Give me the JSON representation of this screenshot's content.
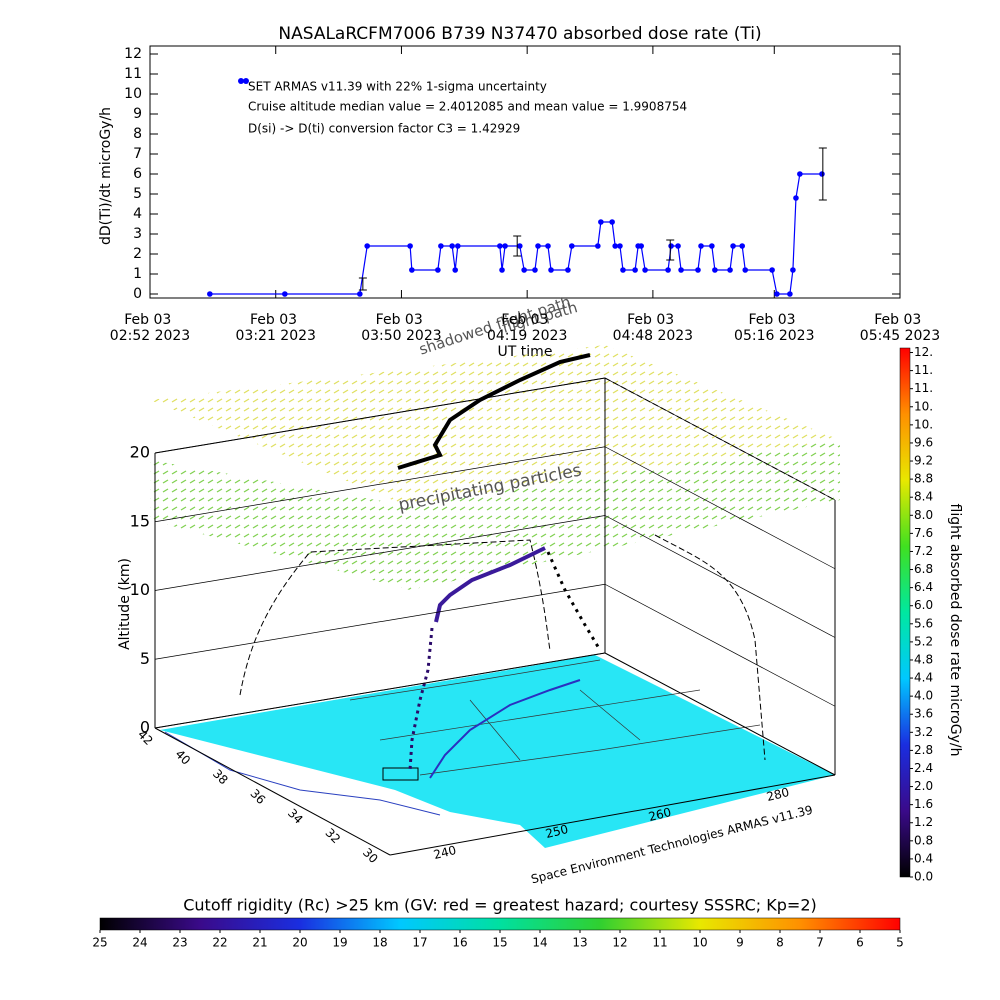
{
  "chart_data": [
    {
      "type": "line",
      "title": "NASALaRCFM7006   B739 N37470 absorbed dose rate (Ti)",
      "ylabel": "dD(Ti)/dt microGy/h",
      "xlabel": "UT time",
      "x": [
        185.8,
        203.1,
        220.4,
        222.1,
        232.0,
        232.4,
        238.4,
        239.1,
        241.7,
        242.4,
        243.0,
        252.7,
        253.2,
        253.9,
        257.3,
        258.3,
        260.8,
        261.5,
        263.8,
        264.5,
        268.4,
        269.3,
        275.3,
        276.0,
        278.6,
        279.3,
        280.4,
        281.1,
        283.9,
        284.6,
        285.3,
        286.2,
        291.5,
        292.2,
        293.8,
        294.5,
        298.4,
        299.1,
        301.6,
        302.3,
        305.8,
        306.5,
        308.6,
        309.3,
        315.5,
        316.6,
        319.6,
        320.3,
        321.0,
        321.9,
        327.0
      ],
      "series": [
        {
          "name": "SET ARMAS v11.39 with 22% 1-sigma uncertainty",
          "color": "#0000ff",
          "values": [
            0,
            0,
            0,
            2.4,
            2.4,
            1.2,
            1.2,
            2.4,
            2.4,
            1.2,
            2.4,
            2.4,
            1.2,
            2.4,
            2.4,
            1.2,
            1.2,
            2.4,
            2.4,
            1.2,
            1.2,
            2.4,
            2.4,
            3.6,
            3.6,
            2.4,
            2.4,
            1.2,
            1.2,
            2.4,
            2.4,
            1.2,
            1.2,
            2.4,
            2.4,
            1.2,
            1.2,
            2.4,
            2.4,
            1.2,
            1.2,
            2.4,
            2.4,
            1.2,
            1.2,
            0,
            0,
            1.2,
            4.8,
            6,
            6
          ]
        }
      ],
      "error_bars": {
        "x": [
          221.1,
          256.7,
          292.0,
          327.2
        ],
        "values": [
          0.5,
          2.4,
          2.2,
          6.0
        ],
        "errors": [
          0.3,
          0.5,
          0.5,
          1.3
        ]
      },
      "annotations": [
        "Cruise altitude median value = 2.4012085 and mean value = 1.9908754",
        "D(si) -> D(ti) conversion factor C3 = 1.42929"
      ],
      "xlim": [
        172,
        345
      ],
      "xticks": [
        {
          "value": 172,
          "label": "Feb 03 02:52 2023"
        },
        {
          "value": 201,
          "label": "Feb 03 03:21 2023"
        },
        {
          "value": 230,
          "label": "Feb 03 03:50 2023"
        },
        {
          "value": 259,
          "label": "Feb 03 04:19 2023"
        },
        {
          "value": 288,
          "label": "Feb 03 04:48 2023"
        },
        {
          "value": 316,
          "label": "Feb 03 05:16 2023"
        },
        {
          "value": 345,
          "label": "Feb 03 05:45 2023"
        }
      ],
      "ylim": [
        -0.2,
        12.4
      ],
      "yticks": [
        0,
        1,
        2,
        3,
        4,
        5,
        6,
        7,
        8,
        9,
        10,
        11,
        12
      ]
    },
    {
      "type": "surface3d",
      "zlabel": "Altitude (km)",
      "zlim": [
        0,
        20
      ],
      "zticks": [
        0,
        5,
        10,
        15,
        20
      ],
      "lat_ticks": [
        42,
        40,
        38,
        36,
        34,
        32,
        30
      ],
      "lon_ticks": [
        240,
        250,
        260,
        280
      ],
      "annotations": [
        "shadowed flight path",
        "flight path",
        "precipitating particles"
      ],
      "credit": "Space Environment Technologies ARMAS v11.39"
    },
    {
      "type": "colorbar",
      "label": "flight absorbed dose rate microGy/h",
      "lim": [
        0,
        11.7
      ],
      "colors": [
        "#000000",
        "#3a0a8a",
        "#1a2ee0",
        "#00c8ff",
        "#00e8a0",
        "#40e020",
        "#e8e800",
        "#ff9000",
        "#ff0000"
      ],
      "ticks": [
        {
          "value": 0,
          "label": "0.0"
        },
        0.4,
        0.8,
        1.2,
        1.6,
        {
          "value": 2,
          "label": "2.0"
        },
        2.4,
        2.8,
        3.2,
        3.6,
        {
          "value": 4,
          "label": "4.0"
        },
        4.4,
        4.8,
        5.2,
        5.6,
        {
          "value": 6,
          "label": "6.0"
        },
        6.4,
        6.8,
        7.2,
        7.6,
        {
          "value": 8,
          "label": "8.0"
        },
        8.4,
        8.8,
        9.2,
        9.6,
        {
          "value": 10,
          "label": "10."
        },
        {
          "value": 10.4,
          "label": "10."
        },
        {
          "value": 10.8,
          "label": "11."
        },
        {
          "value": 11.2,
          "label": "11."
        },
        {
          "value": 11.6,
          "label": "12."
        }
      ]
    },
    {
      "type": "colorbar",
      "title": "Cutoff rigidity (Rc) >25 km (GV: red = greatest hazard; courtesy SSSRC; Kp=2)",
      "lim": [
        25,
        5
      ],
      "colors": [
        "#000000",
        "#3a0a8a",
        "#1a2ee0",
        "#00c8ff",
        "#00e0a0",
        "#30d030",
        "#e8e800",
        "#ff9000",
        "#ff0000"
      ],
      "ticks": [
        25,
        24,
        23,
        22,
        21,
        20,
        19,
        18,
        17,
        16,
        15,
        14,
        13,
        12,
        11,
        10,
        9,
        8,
        7,
        6,
        5
      ]
    }
  ]
}
